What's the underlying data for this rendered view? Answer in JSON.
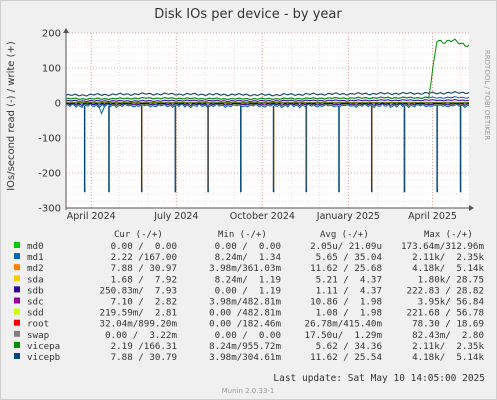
{
  "chart_data": {
    "type": "line",
    "title": "Disk IOs per device - by year",
    "ylabel": "IOs/second read (-) / write (+)",
    "side_label": "RRDTOOL / TOBI OETIKER",
    "ylim": [
      -300,
      200
    ],
    "yticks": [
      -300,
      -200,
      -100,
      0,
      100,
      200
    ],
    "xticks": [
      "April 2024",
      "July 2024",
      "October 2024",
      "January 2025",
      "April 2025"
    ],
    "grid": true,
    "legend_position": "bottom",
    "legend_headers": [
      "Cur (-/+)",
      "Min (-/+)",
      "Avg (-/+)",
      "Max (-/+)"
    ],
    "series": [
      {
        "name": "md0",
        "color": "#00cc00",
        "cur": "0.00 /  0.00",
        "min": "0.00 /  0.00",
        "avg": "2.05u/ 21.09u",
        "max": "173.64m/312.96m"
      },
      {
        "name": "md1",
        "color": "#0066b3",
        "cur": "2.22 /167.00",
        "min": "8.24m/  1.34",
        "avg": "5.65 / 35.04",
        "max": "2.11k/  2.35k"
      },
      {
        "name": "md2",
        "color": "#ff8000",
        "cur": "7.88 / 30.97",
        "min": "3.98m/361.03m",
        "avg": "11.62 / 25.68",
        "max": "4.18k/  5.14k"
      },
      {
        "name": "sda",
        "color": "#ffcc00",
        "cur": "1.68 /  7.92",
        "min": "8.24m/  1.19",
        "avg": "5.21 /  4.37",
        "max": "1.80k/ 28.75"
      },
      {
        "name": "sdb",
        "color": "#330099",
        "cur": "250.83m/  7.93",
        "min": "0.00 /  1.19",
        "avg": "1.11 /  4.37",
        "max": "222.83 / 28.82"
      },
      {
        "name": "sdc",
        "color": "#990099",
        "cur": "7.10 /  2.82",
        "min": "3.98m/482.81m",
        "avg": "10.86 /  1.98",
        "max": "3.95k/ 56.84"
      },
      {
        "name": "sdd",
        "color": "#ccff00",
        "cur": "219.59m/  2.81",
        "min": "0.00 /482.81m",
        "avg": "1.08 /  1.98",
        "max": "221.68 / 56.78"
      },
      {
        "name": "root",
        "color": "#ff0000",
        "cur": "32.04m/899.20m",
        "min": "0.00 /182.46m",
        "avg": "26.78m/415.40m",
        "max": "78.30 / 18.69"
      },
      {
        "name": "swap",
        "color": "#808080",
        "cur": "0.00 /  3.22m",
        "min": "0.00 /  0.00",
        "avg": "17.50u/  1.29m",
        "max": "82.43m/  2.80"
      },
      {
        "name": "vicepa",
        "color": "#008f00",
        "cur": "2.19 /166.31",
        "min": "8.24m/955.72m",
        "avg": "5.62 / 34.36",
        "max": "2.11k/  2.35k"
      },
      {
        "name": "vicepb",
        "color": "#00487d",
        "cur": "7.88 / 30.79",
        "min": "3.98m/304.61m",
        "avg": "11.62 / 25.54",
        "max": "4.18k/  5.14k"
      }
    ],
    "profile_notes": "approximate levels read from the plot, IOs/second",
    "approx_profile": {
      "write_baseline_md2": [
        22,
        24,
        26,
        25,
        24,
        23,
        25,
        26,
        27,
        28,
        30
      ],
      "write_baseline_md1": [
        12,
        12,
        14,
        13,
        12,
        12,
        13,
        14,
        15,
        15,
        16
      ],
      "vicepa_write_recent": [
        8,
        180,
        175,
        178,
        170,
        165
      ],
      "read_spike_dates": [
        "2024-03-25",
        "2024-04-20",
        "2024-05-25",
        "2024-06-30",
        "2024-08-04",
        "2024-09-08",
        "2024-10-13",
        "2024-11-17",
        "2024-12-22",
        "2025-01-26",
        "2025-03-02",
        "2025-04-06",
        "2025-05-01"
      ],
      "read_spike_depth": [
        -255,
        -255,
        -255,
        -255,
        -255,
        -255,
        -255,
        -255,
        -255,
        -255,
        -255,
        -255,
        -255
      ]
    },
    "x_range": [
      "2024-03-05",
      "2025-05-10"
    ]
  },
  "footer": {
    "last_update": "Last update:  Sat May 10 14:05:00 2025",
    "munin_version": "Munin 2.0.33-1"
  }
}
